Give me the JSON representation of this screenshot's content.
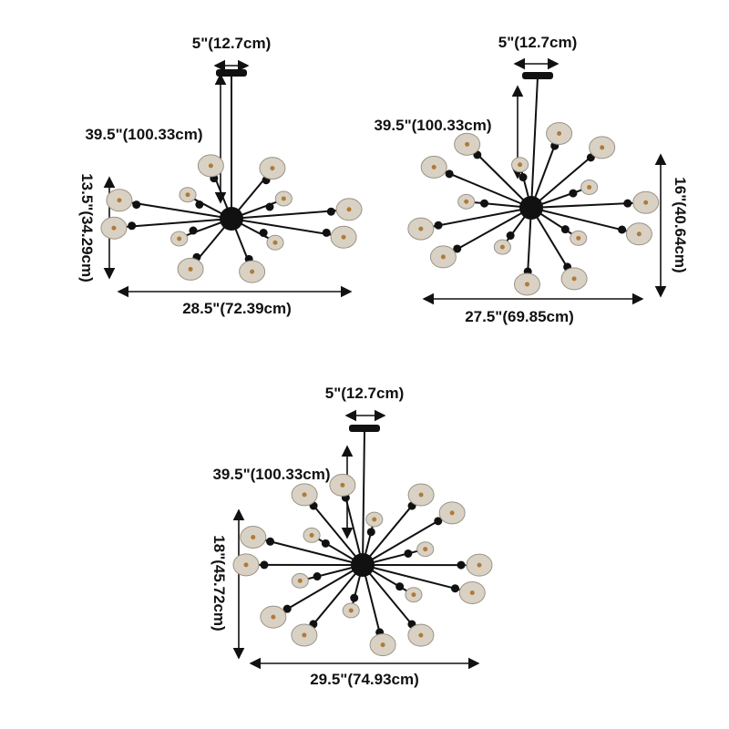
{
  "diagrams": [
    {
      "canopy_width": "5\"(12.7cm)",
      "drop_length": "39.5\"(100.33cm)",
      "height": "13.5\"(34.29cm)",
      "width": "28.5\"(72.39cm)",
      "arm_count": 12
    },
    {
      "canopy_width": "5\"(12.7cm)",
      "drop_length": "39.5\"(100.33cm)",
      "height": "16\"(40.64cm)",
      "width": "27.5\"(69.85cm)",
      "arm_count": 15
    },
    {
      "canopy_width": "5\"(12.7cm)",
      "drop_length": "39.5\"(100.33cm)",
      "height": "18\"(45.72cm)",
      "width": "29.5\"(74.93cm)",
      "arm_count": 18
    }
  ],
  "colors": {
    "fixture": "#111111",
    "bulb": "#d9d2c4",
    "filament": "#b07a3a",
    "text": "#111111"
  }
}
